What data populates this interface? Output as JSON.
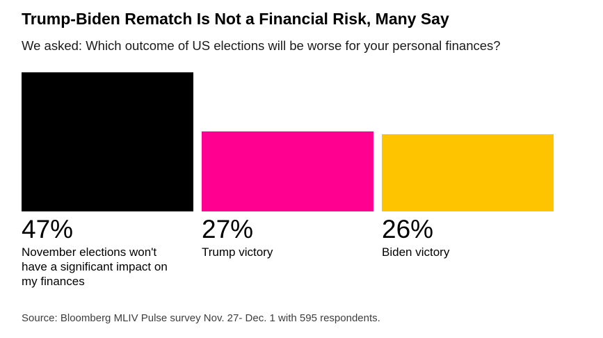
{
  "header": {
    "title": "Trump-Biden Rematch Is Not a Financial Risk, Many Say",
    "subtitle": "We asked: Which outcome of US elections will be worse for your personal finances?"
  },
  "chart_data": {
    "type": "bar",
    "title": "Trump-Biden Rematch Is Not a Financial Risk, Many Say",
    "subtitle": "We asked: Which outcome of US elections will be worse for your personal finances?",
    "categories": [
      "November elections won't have a significant impact on my finances",
      "Trump victory",
      "Biden victory"
    ],
    "values": [
      47,
      27,
      26
    ],
    "value_labels": [
      "47%",
      "27%",
      "26%"
    ],
    "unit": "%",
    "bar_colors": [
      "#000000",
      "#FF0090",
      "#FFC400"
    ],
    "ylim": [
      0,
      47
    ],
    "grid": false,
    "legend": "none",
    "orientation": "vertical",
    "value_label_position": "below-bar"
  },
  "footer": {
    "source": "Source: Bloomberg MLIV Pulse survey Nov. 27- Dec. 1 with 595 respondents."
  }
}
